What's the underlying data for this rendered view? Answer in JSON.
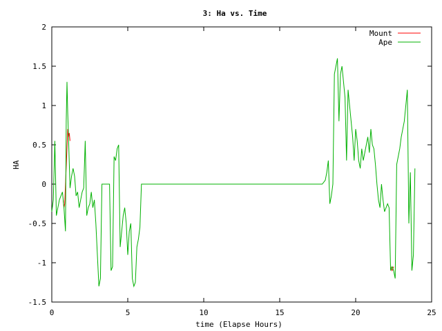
{
  "chart_data": {
    "type": "line",
    "title": "3: Ha vs. Time",
    "xlabel": "time (Elapse Hours)",
    "ylabel": "HA",
    "xlim": [
      0,
      25
    ],
    "ylim": [
      -1.5,
      2
    ],
    "xticks": [
      0,
      5,
      10,
      15,
      20,
      25
    ],
    "yticks": [
      -1.5,
      -1,
      -0.5,
      0,
      0.5,
      1,
      1.5,
      2
    ],
    "ytick_labels": [
      "-1.5",
      "-1",
      "-0.5",
      "0",
      "0.5",
      "1",
      "1.5",
      "2"
    ],
    "xtick_labels": [
      "0",
      "5",
      "10",
      "15",
      "20",
      "25"
    ],
    "grid": false,
    "legend_position": "top-right",
    "series": [
      {
        "name": "Mount",
        "color": "#ff0000",
        "points": [
          [
            0.75,
            -0.2
          ],
          [
            0.8,
            -0.3
          ],
          [
            0.85,
            -0.25
          ],
          [
            1.05,
            0.7
          ],
          [
            1.1,
            0.6
          ],
          [
            1.15,
            0.65
          ],
          [
            1.2,
            0.55
          ],
          [
            22.3,
            -1.05
          ],
          [
            22.4,
            -1.1
          ],
          [
            22.5,
            -1.05
          ]
        ]
      },
      {
        "name": "Ape",
        "color": "#00b000",
        "points": [
          [
            0.0,
            -0.35
          ],
          [
            0.1,
            -0.2
          ],
          [
            0.2,
            0.55
          ],
          [
            0.3,
            -0.4
          ],
          [
            0.4,
            -0.3
          ],
          [
            0.5,
            -0.2
          ],
          [
            0.6,
            -0.15
          ],
          [
            0.7,
            -0.1
          ],
          [
            0.8,
            -0.3
          ],
          [
            0.9,
            -0.6
          ],
          [
            0.95,
            0.8
          ],
          [
            1.0,
            1.3
          ],
          [
            1.05,
            0.9
          ],
          [
            1.1,
            0.6
          ],
          [
            1.2,
            -0.05
          ],
          [
            1.3,
            0.1
          ],
          [
            1.4,
            0.2
          ],
          [
            1.5,
            0.1
          ],
          [
            1.6,
            -0.15
          ],
          [
            1.7,
            -0.1
          ],
          [
            1.8,
            -0.3
          ],
          [
            1.9,
            -0.2
          ],
          [
            2.0,
            -0.1
          ],
          [
            2.1,
            -0.05
          ],
          [
            2.2,
            0.55
          ],
          [
            2.3,
            -0.4
          ],
          [
            2.4,
            -0.3
          ],
          [
            2.5,
            -0.25
          ],
          [
            2.6,
            -0.1
          ],
          [
            2.7,
            -0.3
          ],
          [
            2.8,
            -0.2
          ],
          [
            2.9,
            -0.5
          ],
          [
            3.0,
            -0.9
          ],
          [
            3.1,
            -1.3
          ],
          [
            3.2,
            -1.2
          ],
          [
            3.3,
            0.0
          ],
          [
            3.5,
            0.0
          ],
          [
            3.8,
            0.0
          ],
          [
            3.9,
            -1.1
          ],
          [
            4.0,
            -1.05
          ],
          [
            4.1,
            0.35
          ],
          [
            4.2,
            0.3
          ],
          [
            4.3,
            0.45
          ],
          [
            4.4,
            0.5
          ],
          [
            4.5,
            -0.8
          ],
          [
            4.6,
            -0.6
          ],
          [
            4.7,
            -0.4
          ],
          [
            4.8,
            -0.3
          ],
          [
            4.9,
            -0.5
          ],
          [
            5.0,
            -0.9
          ],
          [
            5.1,
            -0.6
          ],
          [
            5.2,
            -0.5
          ],
          [
            5.3,
            -1.2
          ],
          [
            5.4,
            -1.3
          ],
          [
            5.5,
            -1.25
          ],
          [
            5.6,
            -0.8
          ],
          [
            5.7,
            -0.7
          ],
          [
            5.8,
            -0.55
          ],
          [
            5.9,
            0.0
          ],
          [
            6.0,
            0.0
          ],
          [
            10.0,
            0.0
          ],
          [
            15.0,
            0.0
          ],
          [
            17.8,
            0.0
          ],
          [
            18.0,
            0.05
          ],
          [
            18.1,
            0.15
          ],
          [
            18.2,
            0.3
          ],
          [
            18.3,
            -0.25
          ],
          [
            18.4,
            -0.15
          ],
          [
            18.5,
            0.0
          ],
          [
            18.6,
            1.4
          ],
          [
            18.7,
            1.5
          ],
          [
            18.8,
            1.6
          ],
          [
            18.9,
            0.8
          ],
          [
            19.0,
            1.4
          ],
          [
            19.1,
            1.5
          ],
          [
            19.2,
            1.3
          ],
          [
            19.3,
            1.1
          ],
          [
            19.4,
            0.3
          ],
          [
            19.5,
            1.2
          ],
          [
            19.6,
            1.0
          ],
          [
            19.7,
            0.8
          ],
          [
            19.8,
            0.6
          ],
          [
            19.9,
            0.3
          ],
          [
            20.0,
            0.7
          ],
          [
            20.1,
            0.55
          ],
          [
            20.2,
            0.3
          ],
          [
            20.3,
            0.2
          ],
          [
            20.4,
            0.45
          ],
          [
            20.5,
            0.3
          ],
          [
            20.6,
            0.4
          ],
          [
            20.7,
            0.5
          ],
          [
            20.8,
            0.6
          ],
          [
            20.9,
            0.4
          ],
          [
            21.0,
            0.7
          ],
          [
            21.1,
            0.5
          ],
          [
            21.2,
            0.45
          ],
          [
            21.3,
            0.25
          ],
          [
            21.4,
            0.0
          ],
          [
            21.5,
            -0.2
          ],
          [
            21.6,
            -0.3
          ],
          [
            21.7,
            0.0
          ],
          [
            21.8,
            -0.2
          ],
          [
            21.9,
            -0.35
          ],
          [
            22.0,
            -0.3
          ],
          [
            22.1,
            -0.25
          ],
          [
            22.2,
            -0.3
          ],
          [
            22.3,
            -1.1
          ],
          [
            22.4,
            -1.05
          ],
          [
            22.5,
            -1.1
          ],
          [
            22.6,
            -1.2
          ],
          [
            22.7,
            0.25
          ],
          [
            22.8,
            0.35
          ],
          [
            22.9,
            0.45
          ],
          [
            23.0,
            0.6
          ],
          [
            23.1,
            0.7
          ],
          [
            23.2,
            0.8
          ],
          [
            23.3,
            1.0
          ],
          [
            23.4,
            1.2
          ],
          [
            23.5,
            -0.5
          ],
          [
            23.6,
            0.15
          ],
          [
            23.7,
            -1.1
          ],
          [
            23.8,
            -0.9
          ],
          [
            23.9,
            0.2
          ]
        ]
      }
    ]
  }
}
